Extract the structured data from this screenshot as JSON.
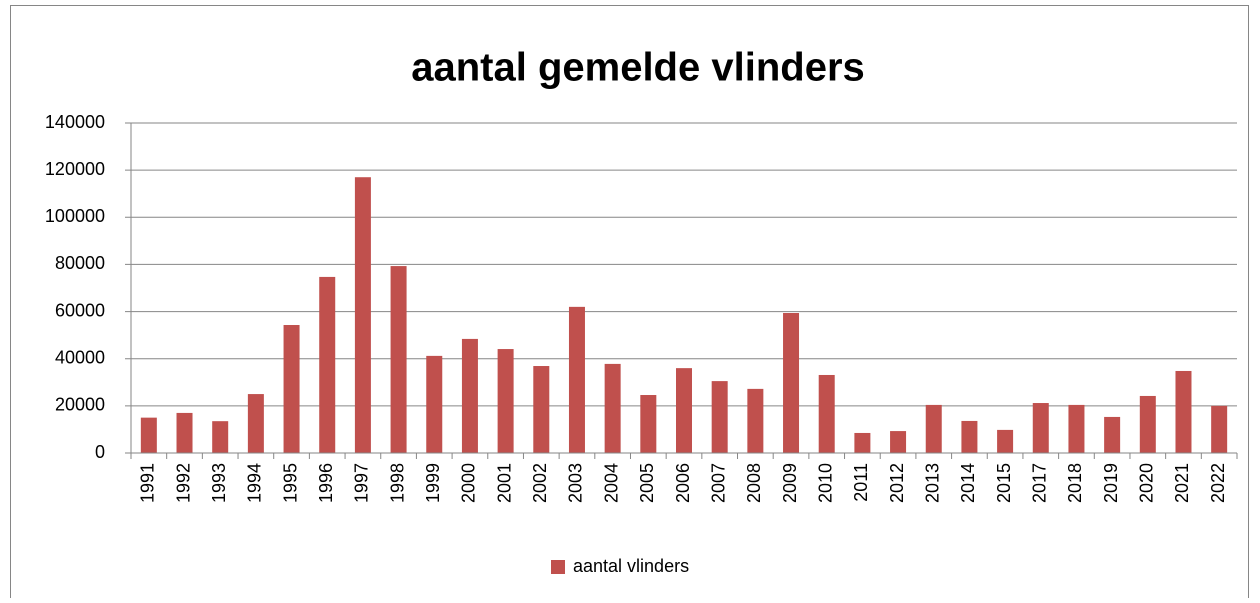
{
  "chart_data": {
    "type": "bar",
    "title": "aantal gemelde vlinders",
    "categories": [
      "1991",
      "1992",
      "1993",
      "1994",
      "1995",
      "1996",
      "1997",
      "1998",
      "1999",
      "2000",
      "2001",
      "2002",
      "2003",
      "2004",
      "2005",
      "2006",
      "2007",
      "2008",
      "2009",
      "2010",
      "2011",
      "2012",
      "2013",
      "2014",
      "2015",
      "2017",
      "2018",
      "2019",
      "2020",
      "2021",
      "2022"
    ],
    "series": [
      {
        "name": "aantal vlinders",
        "color": "#c0504d",
        "values": [
          15000,
          17000,
          13500,
          25000,
          54300,
          74700,
          117000,
          79300,
          41200,
          48400,
          44100,
          36900,
          62000,
          37800,
          24600,
          36000,
          30500,
          27200,
          59400,
          33100,
          8500,
          9300,
          20400,
          13600,
          9800,
          21200,
          20400,
          15300,
          24200,
          34800,
          20000
        ]
      }
    ],
    "ylim": [
      0,
      140000
    ],
    "yticks": [
      0,
      20000,
      40000,
      60000,
      80000,
      100000,
      120000,
      140000
    ],
    "grid": true,
    "legend": "bottom"
  }
}
